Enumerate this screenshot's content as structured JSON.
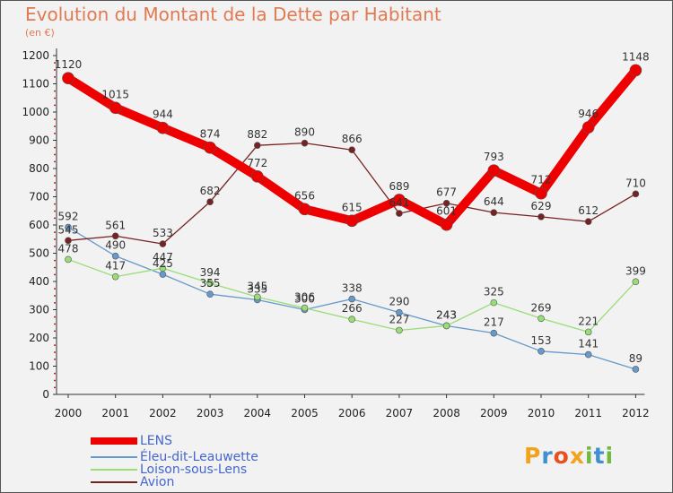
{
  "header": {
    "title": "Evolution du Montant de la Dette par Habitant",
    "subtitle": "(en €)"
  },
  "logo": {
    "letters": [
      "P",
      "r",
      "o",
      "x",
      "i",
      "t",
      "i"
    ],
    "colors": [
      "#f2a31b",
      "#3f8fd2",
      "#e8501f",
      "#f2a31b",
      "#6fb93c",
      "#3f8fd2",
      "#6fb93c"
    ]
  },
  "chart_data": {
    "type": "line",
    "title": "Evolution du Montant de la Dette par Habitant",
    "ylabel": "(en €)",
    "xlabel": "",
    "categories": [
      "2000",
      "2001",
      "2002",
      "2003",
      "2004",
      "2005",
      "2006",
      "2007",
      "2008",
      "2009",
      "2010",
      "2011",
      "2012"
    ],
    "yticks": [
      "0",
      "100",
      "200",
      "300",
      "400",
      "500",
      "600",
      "700",
      "800",
      "900",
      "1000",
      "1100",
      "1200"
    ],
    "ylim": [
      0,
      1200
    ],
    "grid": false,
    "legend_position": "bottom-left",
    "series": [
      {
        "name": "LENS",
        "color": "#ee0000",
        "values": [
          1120,
          1015,
          944,
          874,
          772,
          656,
          615,
          689,
          601,
          793,
          712,
          946,
          1148
        ]
      },
      {
        "name": "Éleu-dit-Leauwette",
        "color": "#6699cc",
        "values": [
          592,
          490,
          425,
          355,
          335,
          300,
          338,
          290,
          243,
          217,
          153,
          141,
          89
        ]
      },
      {
        "name": "Loison-sous-Lens",
        "color": "#99dd77",
        "values": [
          478,
          417,
          447,
          394,
          345,
          306,
          266,
          227,
          243,
          325,
          269,
          221,
          399
        ]
      },
      {
        "name": "Avion",
        "color": "#772222",
        "values": [
          545,
          561,
          533,
          682,
          882,
          890,
          866,
          641,
          677,
          644,
          629,
          612,
          710
        ]
      }
    ]
  }
}
